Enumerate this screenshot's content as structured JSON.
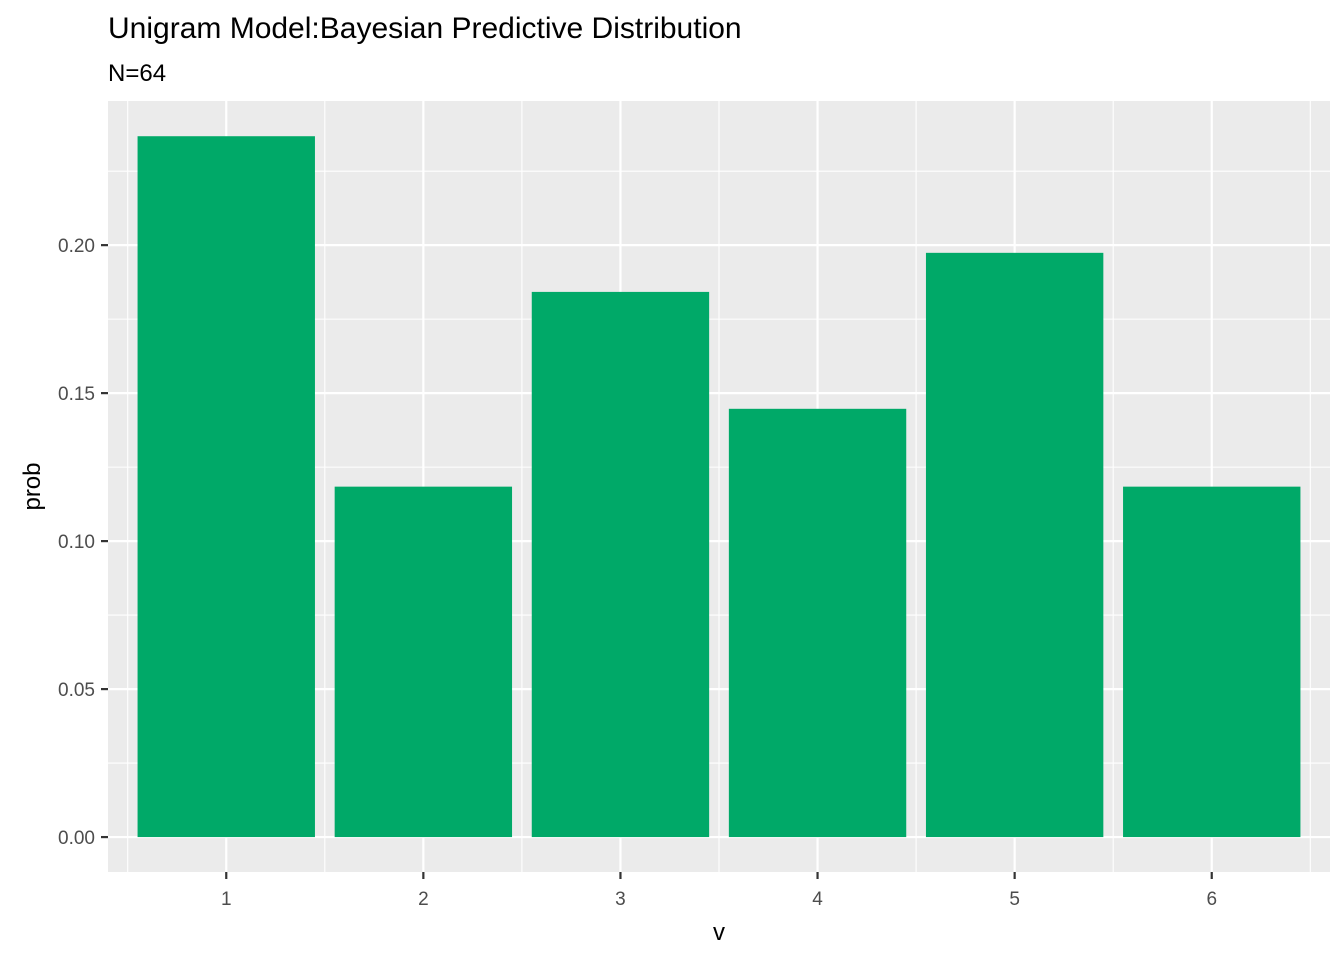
{
  "chart_data": {
    "type": "bar",
    "title": "Unigram Model:Bayesian Predictive Distribution",
    "subtitle": "N=64",
    "xlabel": "v",
    "ylabel": "prob",
    "categories": [
      "1",
      "2",
      "3",
      "4",
      "5",
      "6"
    ],
    "values": [
      0.2368,
      0.1184,
      0.1842,
      0.1447,
      0.1974,
      0.1184
    ],
    "ylim": [
      -0.0118,
      0.2487
    ],
    "yticks": [
      0.0,
      0.05,
      0.1,
      0.15,
      0.2
    ],
    "ytick_labels": [
      "0.00",
      "0.05",
      "0.10",
      "0.15",
      "0.20"
    ],
    "bar_color": "#00A968",
    "panel_background": "#EBEBEB",
    "grid_color": "#FFFFFF",
    "grid": true,
    "legend": "none"
  }
}
